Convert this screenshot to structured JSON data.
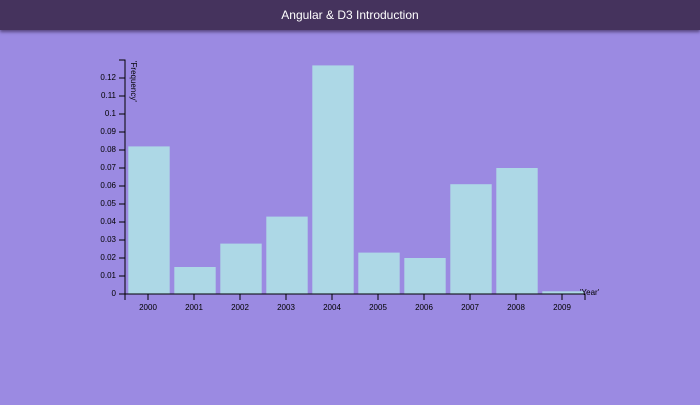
{
  "app": {
    "title": "Angular & D3 Introduction"
  },
  "colors": {
    "background": "#9b8ae2",
    "header": "#45335d",
    "bar_fill": "#add8e6",
    "axis": "#000000"
  },
  "chart_data": {
    "type": "bar",
    "categories": [
      "2000",
      "2001",
      "2002",
      "2003",
      "2004",
      "2005",
      "2006",
      "2007",
      "2008",
      "2009"
    ],
    "values": [
      0.082,
      0.015,
      0.028,
      0.043,
      0.127,
      0.023,
      0.02,
      0.061,
      0.07,
      0.0015
    ],
    "title": "",
    "xlabel": "Year",
    "ylabel": "Frequency",
    "ylim": [
      0,
      0.13
    ],
    "yticks": [
      "0",
      "0.01",
      "0.02",
      "0.03",
      "0.04",
      "0.05",
      "0.06",
      "0.07",
      "0.08",
      "0.09",
      "0.1",
      "0.11",
      "0.12"
    ],
    "grid": false,
    "legend": "none"
  }
}
